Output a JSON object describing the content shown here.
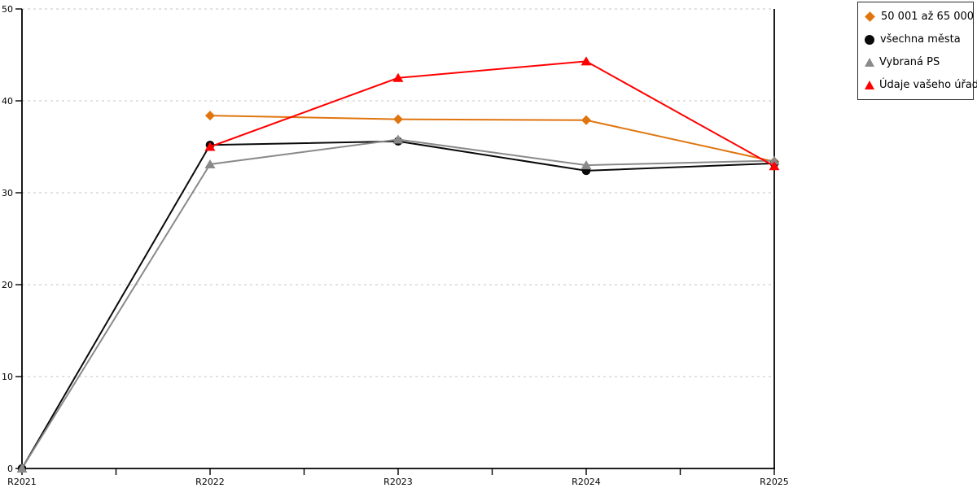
{
  "chart_data": {
    "type": "line",
    "title": "",
    "xlabel": "",
    "ylabel": "",
    "x_categories": [
      "R2021",
      "R2022",
      "R2023",
      "R2024",
      "R2025"
    ],
    "y_ticks": [
      0,
      10,
      20,
      30,
      40,
      50
    ],
    "ylim": [
      0,
      50
    ],
    "grid": "horizontal-dashed",
    "legend_position": "top-right",
    "series": [
      {
        "name": "50 001 až 65 000",
        "marker": "diamond",
        "color": "#e0750f",
        "values": [
          null,
          38.4,
          38.0,
          37.9,
          33.4
        ]
      },
      {
        "name": "všechna města",
        "marker": "circle",
        "color": "#0a0a0a",
        "values": [
          0,
          35.2,
          35.6,
          32.4,
          33.2
        ]
      },
      {
        "name": "Vybraná PS",
        "marker": "triangle",
        "color": "#8a8a8a",
        "values": [
          0,
          33.1,
          35.8,
          33.0,
          33.5
        ]
      },
      {
        "name": "Údaje vašeho úřadu",
        "marker": "triangle",
        "color": "#ff0000",
        "values": [
          null,
          35.0,
          42.5,
          44.3,
          32.9
        ]
      }
    ]
  },
  "colors": {
    "background": "#ffffff",
    "axis": "#000000",
    "gridline": "#c6c6c6",
    "tick_label": "#000000"
  }
}
